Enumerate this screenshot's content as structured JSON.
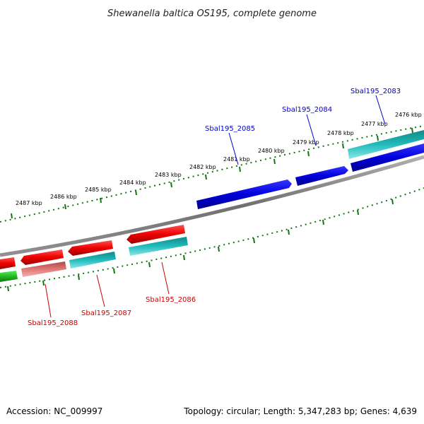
{
  "title": "Shewanella baltica OS195, complete genome",
  "footer": {
    "accession": "Accession: NC_009997",
    "summary": "Topology: circular; Length: 5,347,283 bp; Genes: 4,639"
  },
  "scale_labels": [
    "2476 kbp",
    "2477 kbp",
    "2478 kbp",
    "2479 kbp",
    "2480 kbp",
    "2481 kbp",
    "2482 kbp",
    "2483 kbp",
    "2484 kbp",
    "2485 kbp",
    "2486 kbp",
    "2487 kbp"
  ],
  "gene_labels": [
    {
      "name": "Sbal195_2083",
      "strand": "forward"
    },
    {
      "name": "Sbal195_2084",
      "strand": "forward"
    },
    {
      "name": "Sbal195_2085",
      "strand": "forward"
    },
    {
      "name": "Sbal195_2086",
      "strand": "reverse"
    },
    {
      "name": "Sbal195_2087",
      "strand": "reverse"
    },
    {
      "name": "Sbal195_2088",
      "strand": "reverse"
    }
  ],
  "colors": {
    "forward_gene": "#0000dd",
    "reverse_gene": "#ee0000",
    "cds_cyan": "#22bbbb",
    "cds_pink": "#e07878",
    "cds_green": "#33cc33",
    "backbone": "#808080",
    "ticks": "#117711",
    "forward_label": "#0000cc",
    "reverse_label": "#cc0000"
  }
}
